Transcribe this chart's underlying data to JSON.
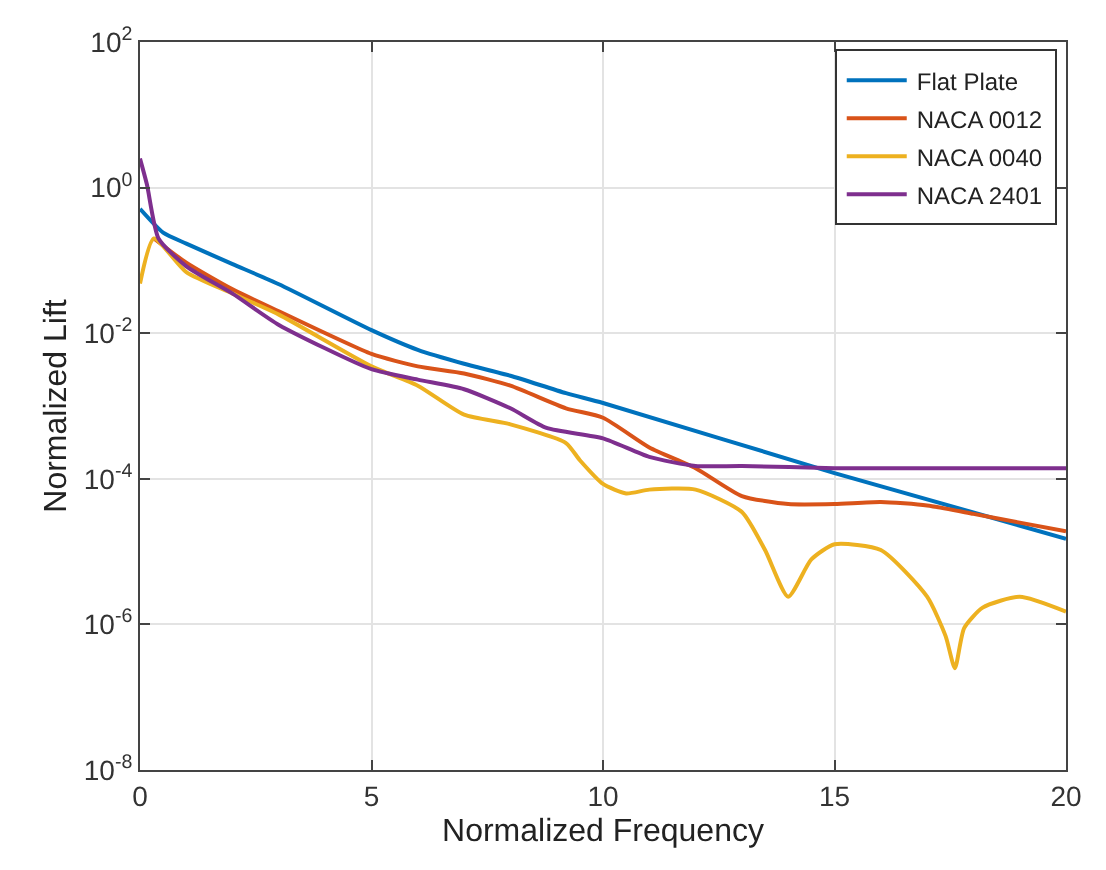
{
  "chart_data": {
    "type": "line",
    "xlabel": "Normalized Frequency",
    "ylabel": "Normalized Lift",
    "log": "y",
    "grid": true,
    "legend": "top right",
    "line_style": "solid",
    "marker": "none",
    "xlim": [
      0,
      20
    ],
    "xticks": [
      0,
      5,
      10,
      15,
      20
    ],
    "ylim": [
      1e-08,
      100
    ],
    "yticks": [
      {
        "value": 1e-08,
        "label": "10$^{-8}$"
      },
      {
        "value": 1e-06,
        "label": "10$^{-6}$"
      },
      {
        "value": 0.0001,
        "label": "10$^{-4}$"
      },
      {
        "value": 0.01,
        "label": "10$^{-2}$"
      },
      {
        "value": 1,
        "label": "10$^{0}$"
      },
      {
        "value": 100,
        "label": "10$^{2}$"
      }
    ],
    "series": [
      {
        "name": "Flat Plate",
        "color": "#0072bd",
        "x": [
          0,
          0.5,
          1,
          2,
          3,
          5,
          6,
          7,
          8,
          9.2,
          10,
          15,
          20
        ],
        "values": [
          0.51,
          0.24,
          0.17,
          0.089,
          0.047,
          0.011,
          0.0059,
          0.0038,
          0.0026,
          0.0015,
          0.0011,
          0.00012,
          1.5e-05
        ]
      },
      {
        "name": "NACA 0012",
        "color": "#d95319",
        "x": [
          0.3,
          1,
          2,
          3,
          5,
          6,
          7,
          8,
          9.2,
          10,
          11,
          12,
          13,
          14,
          15,
          16,
          17,
          18,
          19,
          20
        ],
        "values": [
          0.2,
          0.093,
          0.04,
          0.02,
          0.0052,
          0.0035,
          0.0028,
          0.0019,
          0.00093,
          0.00069,
          0.00027,
          0.00014,
          5.8e-05,
          4.5e-05,
          4.5e-05,
          4.8e-05,
          4.3e-05,
          3.3e-05,
          2.5e-05,
          1.9e-05
        ]
      },
      {
        "name": "NACA 0040",
        "color": "#edb120",
        "x": [
          0,
          0.3,
          1,
          2,
          3,
          5,
          6,
          7,
          8,
          9.2,
          9.5,
          10,
          10.5,
          11,
          12,
          13,
          13.5,
          14,
          14.5,
          15,
          16,
          17,
          17.4,
          17.6,
          17.8,
          18.2,
          19,
          20
        ],
        "values": [
          0.048,
          0.2,
          0.069,
          0.035,
          0.018,
          0.0035,
          0.0019,
          0.00076,
          0.00056,
          0.00031,
          0.00018,
          8.5e-05,
          6.3e-05,
          7.1e-05,
          7.1e-05,
          3.5e-05,
          1.05e-05,
          2.4e-06,
          7.8e-06,
          1.26e-05,
          1.05e-05,
          2.4e-06,
          6.9e-07,
          2.5e-07,
          8.9e-07,
          1.7e-06,
          2.4e-06,
          1.5e-06
        ]
      },
      {
        "name": "NACA 2401",
        "color": "#7e2f8e",
        "x": [
          0,
          0.15,
          0.4,
          1,
          2,
          3,
          5,
          6,
          7,
          8,
          8.78,
          10,
          11,
          12,
          13,
          15,
          17,
          20
        ],
        "values": [
          2.5,
          1.1,
          0.2,
          0.083,
          0.035,
          0.013,
          0.0032,
          0.0023,
          0.0017,
          0.00093,
          0.0005,
          0.00036,
          0.0002,
          0.00015,
          0.00015,
          0.00014,
          0.00014,
          0.00014
        ]
      }
    ]
  }
}
